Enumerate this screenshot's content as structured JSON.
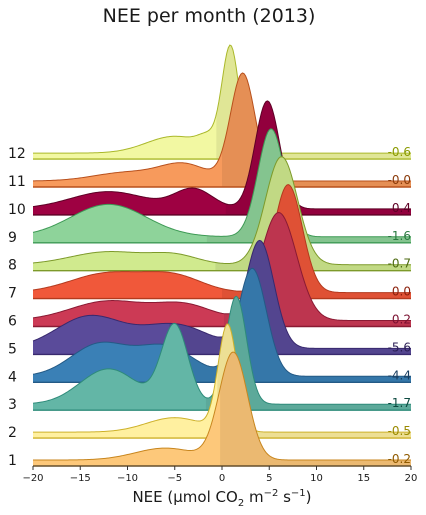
{
  "chart_data": {
    "type": "ridgeline",
    "title": "NEE per month (2013)",
    "xlabel": {
      "prefix": "NEE (µmol CO",
      "sub": "2",
      "mid": " m",
      "sup1": "−2",
      "mid2": " s",
      "sup2": "−1",
      "suffix": ")"
    },
    "xlim": [
      -20,
      20
    ],
    "xticks": [
      -20,
      -15,
      -10,
      -5,
      0,
      5,
      10,
      15,
      20
    ],
    "xtick_labels": [
      "−20",
      "−15",
      "−10",
      "−5",
      "0",
      "5",
      "10",
      "15",
      "20"
    ],
    "series": [
      {
        "name": "1",
        "mean": -0.2,
        "mean_label": "-0.2",
        "color": "#fdc87a",
        "dark": "#c8861e",
        "label_color": "#8f5a00",
        "components": [
          [
            -6,
            3.2,
            0.1
          ],
          [
            1.2,
            1.5,
            0.9
          ]
        ]
      },
      {
        "name": "2",
        "mean": -0.5,
        "mean_label": "-0.5",
        "color": "#fff0a0",
        "dark": "#cdb12a",
        "label_color": "#9a8a00",
        "components": [
          [
            -5,
            3.0,
            0.12
          ],
          [
            0.6,
            1.0,
            0.88
          ]
        ]
      },
      {
        "name": "3",
        "mean": -1.7,
        "mean_label": "-1.7",
        "color": "#63b6a6",
        "dark": "#2e8b7a",
        "label_color": "#0d4a40",
        "components": [
          [
            -12,
            3.0,
            0.18
          ],
          [
            -5,
            1.4,
            0.4
          ],
          [
            1.5,
            1.1,
            0.55
          ]
        ]
      },
      {
        "name": "4",
        "mean": -4.4,
        "mean_label": "-4.4",
        "color": "#3a80b6",
        "dark": "#245a86",
        "label_color": "#173c5f",
        "components": [
          [
            -13,
            3.0,
            0.28
          ],
          [
            -6,
            3.0,
            0.26
          ],
          [
            3.2,
            1.5,
            0.95
          ]
        ]
      },
      {
        "name": "5",
        "mean": -5.6,
        "mean_label": "-5.6",
        "color": "#5a4b9a",
        "dark": "#38296e",
        "label_color": "#2a1e55",
        "components": [
          [
            -14,
            3.5,
            0.3
          ],
          [
            -5,
            3.5,
            0.22
          ],
          [
            4.0,
            1.5,
            1.0
          ]
        ]
      },
      {
        "name": "6",
        "mean": 0.2,
        "mean_label": "0.2",
        "color": "#cc3a55",
        "dark": "#8a1a33",
        "label_color": "#7a1030",
        "components": [
          [
            -12,
            4.0,
            0.18
          ],
          [
            -4,
            3.0,
            0.14
          ],
          [
            6.0,
            1.9,
            1.0
          ]
        ]
      },
      {
        "name": "7",
        "mean": 0.0,
        "mean_label": "0.0",
        "color": "#f0583a",
        "dark": "#b33a1e",
        "label_color": "#8a1e0a",
        "components": [
          [
            -12,
            4.0,
            0.18
          ],
          [
            -5,
            3.0,
            0.14
          ],
          [
            7.0,
            1.5,
            1.0
          ]
        ]
      },
      {
        "name": "8",
        "mean": -0.7,
        "mean_label": "-0.7",
        "color": "#d0ea8e",
        "dark": "#7d9a2a",
        "label_color": "#4d6a10",
        "components": [
          [
            -12,
            4.0,
            0.12
          ],
          [
            -5,
            2.5,
            0.08
          ],
          [
            6.3,
            1.7,
            1.0
          ]
        ]
      },
      {
        "name": "9",
        "mean": -1.6,
        "mean_label": "-1.6",
        "color": "#8ed39a",
        "dark": "#3e9a55",
        "label_color": "#2a7a40",
        "components": [
          [
            -12,
            4.0,
            0.3
          ],
          [
            5.2,
            1.4,
            1.0
          ]
        ]
      },
      {
        "name": "10",
        "mean": 0.4,
        "mean_label": "0.4",
        "color": "#9e0142",
        "dark": "#5e0025",
        "label_color": "#5e0025",
        "components": [
          [
            -12,
            4.0,
            0.16
          ],
          [
            -3,
            2.0,
            0.18
          ],
          [
            4.8,
            1.3,
            1.0
          ]
        ]
      },
      {
        "name": "11",
        "mean": -0.0,
        "mean_label": "-0.0",
        "color": "#f79a5c",
        "dark": "#b8501c",
        "label_color": "#8a3a0a",
        "components": [
          [
            -10,
            3.5,
            0.08
          ],
          [
            -4,
            2.5,
            0.15
          ],
          [
            2.2,
            1.3,
            1.0
          ]
        ]
      },
      {
        "name": "12",
        "mean": -0.6,
        "mean_label": "-0.6",
        "color": "#f2f8a2",
        "dark": "#aab82a",
        "label_color": "#8a9a00",
        "components": [
          [
            -5,
            3.0,
            0.16
          ],
          [
            -1.5,
            1.0,
            0.1
          ],
          [
            0.9,
            0.9,
            1.0
          ]
        ]
      }
    ]
  }
}
